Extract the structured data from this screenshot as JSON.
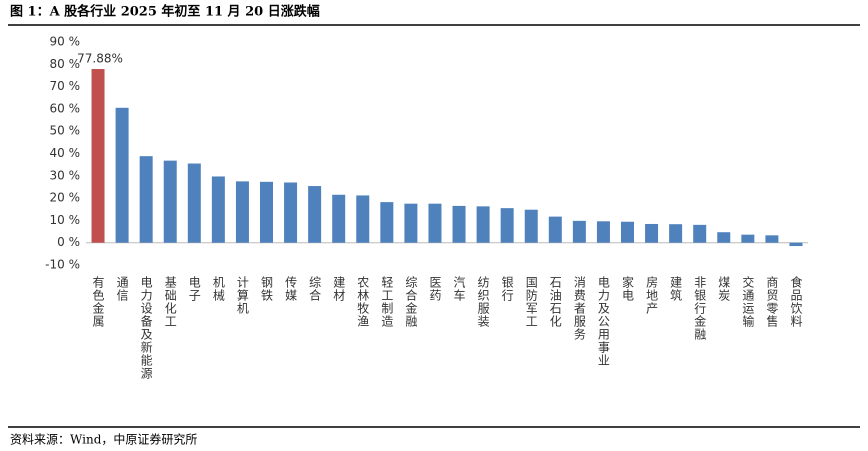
{
  "chart_data": {
    "type": "bar",
    "title": "图 1：A 股各行业 2025 年初至 11 月 20 日涨跌幅",
    "source": "资料来源：Wind，中原证券研究所",
    "categories": [
      "有色金属",
      "通信",
      "电力设备及新能源",
      "基础化工",
      "电子",
      "机械",
      "计算机",
      "钢铁",
      "传媒",
      "综合",
      "建材",
      "农林牧渔",
      "轻工制造",
      "综合金融",
      "医药",
      "汽车",
      "纺织服装",
      "银行",
      "国防军工",
      "石油石化",
      "消费者服务",
      "电力及公用事业",
      "家电",
      "房地产",
      "建筑",
      "非银行金融",
      "煤炭",
      "交通运输",
      "商贸零售",
      "食品饮料"
    ],
    "values": [
      77.88,
      60.5,
      38.8,
      36.8,
      35.5,
      29.7,
      27.5,
      27.3,
      27,
      25.4,
      21.5,
      21.2,
      18.2,
      17.5,
      17.5,
      16.5,
      16.3,
      15.5,
      14.8,
      11.7,
      9.8,
      9.6,
      9.4,
      8.4,
      8.3,
      8,
      4.7,
      3.6,
      3.3,
      -1.5
    ],
    "value_labels": [
      "77.88%",
      null,
      null,
      null,
      null,
      null,
      null,
      null,
      null,
      null,
      null,
      null,
      null,
      null,
      null,
      null,
      null,
      null,
      null,
      null,
      null,
      null,
      null,
      null,
      null,
      null,
      null,
      null,
      null,
      null
    ],
    "colors": [
      "#c0504d",
      "#4f81bd",
      "#4f81bd",
      "#4f81bd",
      "#4f81bd",
      "#4f81bd",
      "#4f81bd",
      "#4f81bd",
      "#4f81bd",
      "#4f81bd",
      "#4f81bd",
      "#4f81bd",
      "#4f81bd",
      "#4f81bd",
      "#4f81bd",
      "#4f81bd",
      "#4f81bd",
      "#4f81bd",
      "#4f81bd",
      "#4f81bd",
      "#4f81bd",
      "#4f81bd",
      "#4f81bd",
      "#4f81bd",
      "#4f81bd",
      "#4f81bd",
      "#4f81bd",
      "#4f81bd",
      "#4f81bd",
      "#4f81bd"
    ],
    "ylim": [
      -10,
      90
    ],
    "yticks": [
      {
        "value": 90,
        "label": "90 %"
      },
      {
        "value": 80,
        "label": "80 %"
      },
      {
        "value": 70,
        "label": "70 %"
      },
      {
        "value": 60,
        "label": "60 %"
      },
      {
        "value": 50,
        "label": "50 %"
      },
      {
        "value": 40,
        "label": "40 %"
      },
      {
        "value": 30,
        "label": "30 %"
      },
      {
        "value": 20,
        "label": "20 %"
      },
      {
        "value": 10,
        "label": "10 %"
      },
      {
        "value": 0,
        "label": "0 %"
      },
      {
        "value": -10,
        "label": "-10 %"
      }
    ],
    "grid": false
  }
}
